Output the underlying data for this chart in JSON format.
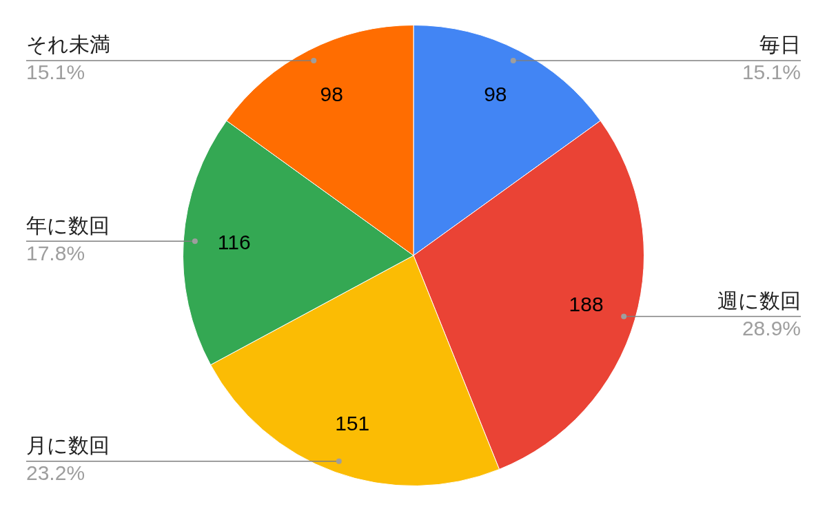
{
  "chart_data": {
    "type": "pie",
    "categories": [
      "毎日",
      "週に数回",
      "月に数回",
      "年に数回",
      "それ未満"
    ],
    "values": [
      98,
      188,
      151,
      116,
      98
    ],
    "colors": [
      "#4285f4",
      "#ea4335",
      "#fbbc04",
      "#34a853",
      "#ff6d01"
    ],
    "data_labels": true,
    "annotations": [
      "15.1%",
      "28.9%",
      "23.2%",
      "17.8%",
      "15.1%"
    ],
    "legend": false
  }
}
